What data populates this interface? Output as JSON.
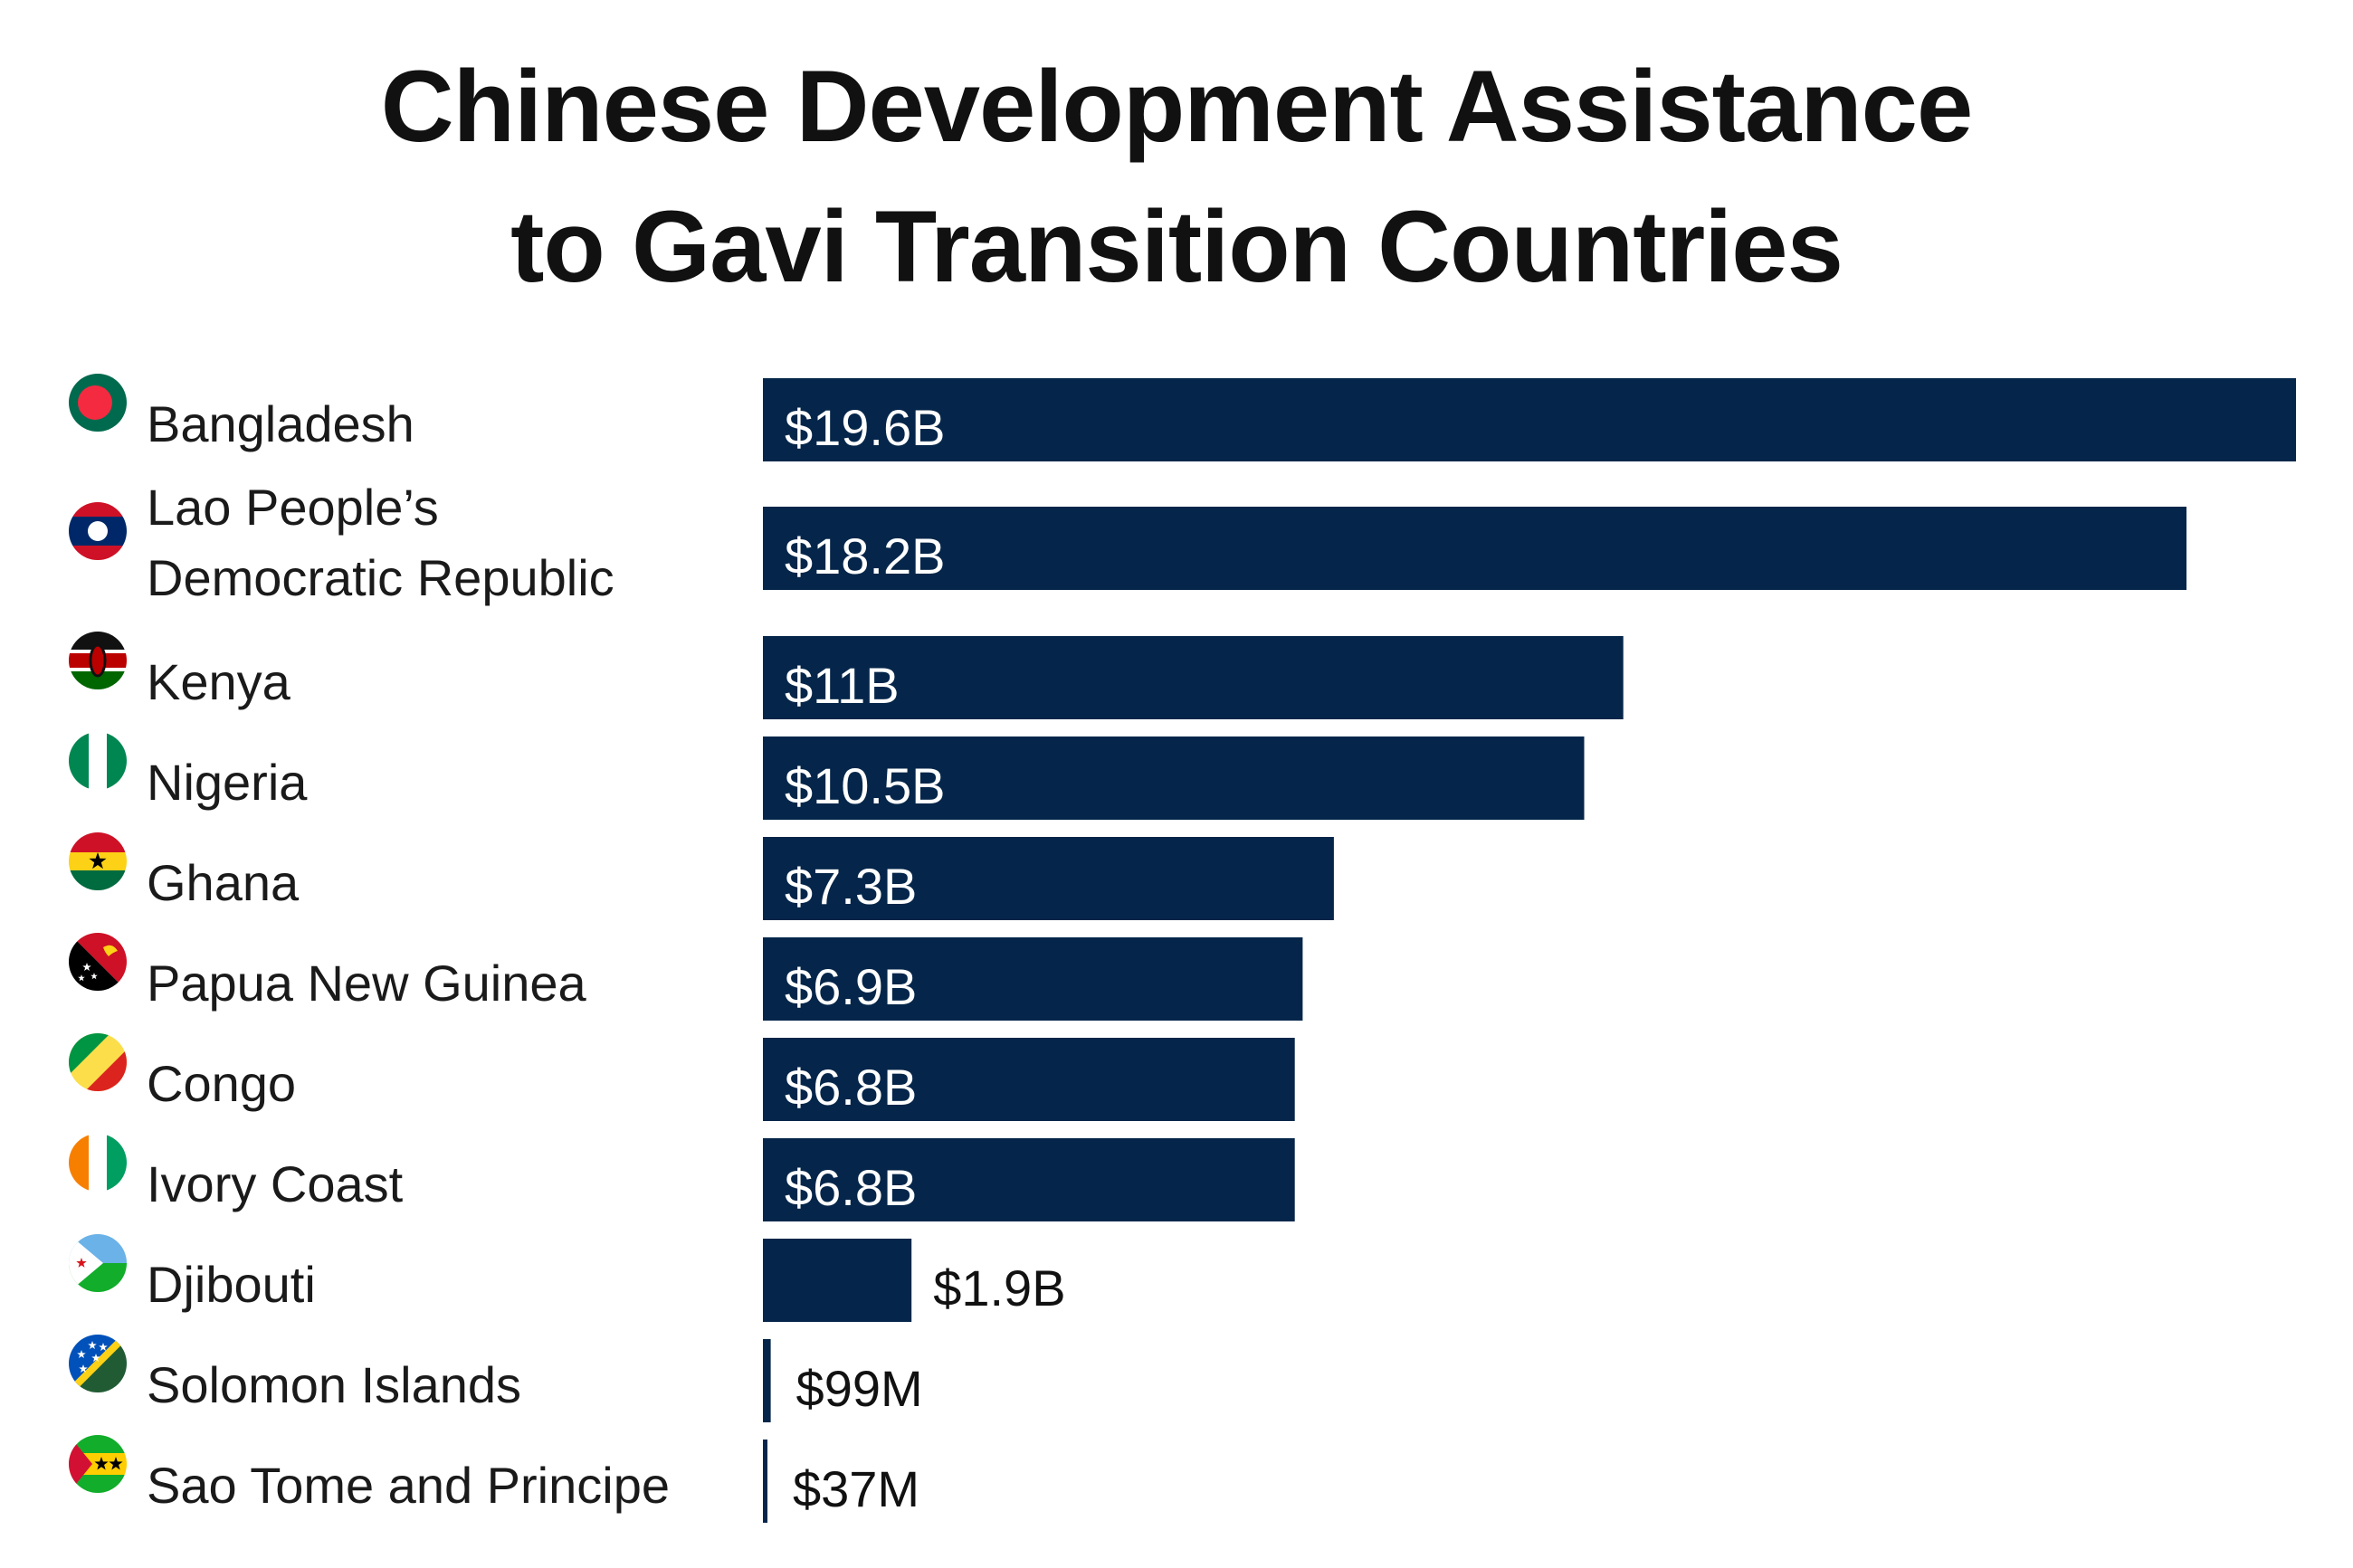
{
  "chart_data": {
    "type": "bar",
    "orientation": "horizontal",
    "title": "Chinese Development Assistance\nto Gavi Transition Countries",
    "xlabel": "",
    "ylabel": "",
    "grid": false,
    "legend": "none",
    "unit": "USD billions",
    "bar_color": "#05264a",
    "categories": [
      "Bangladesh",
      "Lao People’s Democratic Republic",
      "Kenya",
      "Nigeria",
      "Ghana",
      "Papua New Guinea",
      "Congo",
      "Ivory Coast",
      "Djibouti",
      "Solomon Islands",
      "Sao Tome and Principe"
    ],
    "label_lines": [
      [
        "Bangladesh"
      ],
      [
        "Lao People’s",
        "Democratic Republic"
      ],
      [
        "Kenya"
      ],
      [
        "Nigeria"
      ],
      [
        "Ghana"
      ],
      [
        "Papua New Guinea"
      ],
      [
        "Congo"
      ],
      [
        "Ivory Coast"
      ],
      [
        "Djibouti"
      ],
      [
        "Solomon Islands"
      ],
      [
        "Sao Tome and Principe"
      ]
    ],
    "values": [
      19.6,
      18.2,
      11,
      10.5,
      7.3,
      6.9,
      6.8,
      6.8,
      1.9,
      0.099,
      0.037
    ],
    "value_labels": [
      "$19.6B",
      "$18.2B",
      "$11B",
      "$10.5B",
      "$7.3B",
      "$6.9B",
      "$6.8B",
      "$6.8B",
      "$1.9B",
      "$99M",
      "$37M"
    ],
    "flags": [
      "bangladesh-flag-icon",
      "laos-flag-icon",
      "kenya-flag-icon",
      "nigeria-flag-icon",
      "ghana-flag-icon",
      "papua-new-guinea-flag-icon",
      "congo-flag-icon",
      "ivory-coast-flag-icon",
      "djibouti-flag-icon",
      "solomon-islands-flag-icon",
      "sao-tome-and-principe-flag-icon"
    ]
  }
}
